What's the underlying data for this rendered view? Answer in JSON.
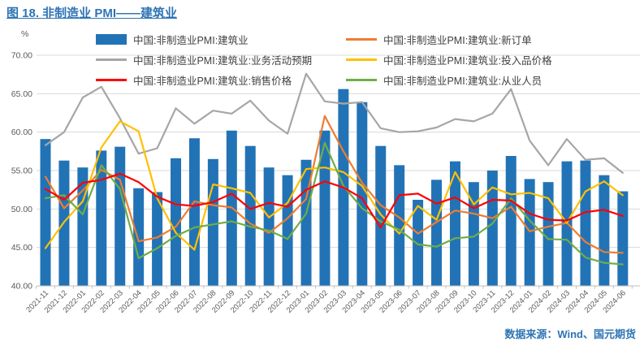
{
  "title": "图 18. 非制造业 PMI——建筑业",
  "source": "数据来源：Wind、国元期货",
  "y_axis": {
    "unit": "%",
    "ticks": [
      "70.00",
      "65.00",
      "60.00",
      "55.00",
      "50.00",
      "45.00",
      "40.00"
    ],
    "tick_values": [
      70,
      65,
      60,
      55,
      50,
      45,
      40
    ]
  },
  "styles": {
    "grid_color": "#D9D9D9",
    "axis_color": "#BFBFBF",
    "tick_label_color": "#595959",
    "background": "#FFFFFF"
  },
  "chart_data": {
    "type": "bar",
    "subtype": "bar+line combo",
    "title": "图 18. 非制造业 PMI——建筑业",
    "xlabel": "",
    "ylabel": "%",
    "ylim": [
      40,
      70
    ],
    "grid": true,
    "legend_position": "top",
    "categories": [
      "2021-11",
      "2021-12",
      "2022-01",
      "2022-02",
      "2022-03",
      "2022-04",
      "2022-05",
      "2022-06",
      "2022-07",
      "2022-08",
      "2022-09",
      "2022-10",
      "2022-11",
      "2022-12",
      "2023-01",
      "2023-02",
      "2023-03",
      "2023-04",
      "2023-05",
      "2023-06",
      "2023-07",
      "2023-08",
      "2023-09",
      "2023-10",
      "2023-11",
      "2023-12",
      "2024-01",
      "2024-02",
      "2024-03",
      "2024-04",
      "2024-05",
      "2024-06"
    ],
    "series": [
      {
        "name": "中国:非制造业PMI:建筑业",
        "type": "bar",
        "color": "#2273B6",
        "values": [
          59.1,
          56.3,
          55.4,
          57.6,
          58.1,
          52.7,
          52.2,
          56.6,
          59.2,
          56.5,
          60.2,
          58.2,
          55.4,
          54.4,
          56.4,
          60.2,
          65.6,
          63.9,
          58.2,
          55.7,
          51.2,
          53.8,
          56.2,
          53.5,
          55.0,
          56.9,
          53.9,
          53.5,
          56.2,
          56.3,
          54.4,
          52.3
        ]
      },
      {
        "name": "中国:非制造业PMI:建筑业:新订单",
        "type": "line",
        "color": "#ED7D31",
        "values": [
          54.2,
          50.1,
          52.4,
          55.1,
          53.8,
          45.8,
          46.3,
          47.7,
          51.0,
          50.5,
          50.2,
          48.1,
          46.9,
          48.8,
          51.3,
          62.1,
          57.5,
          53.4,
          50.5,
          48.9,
          46.8,
          48.3,
          49.8,
          49.4,
          48.8,
          50.3,
          47.1,
          47.7,
          48.2,
          45.7,
          44.4,
          44.3
        ]
      },
      {
        "name": "中国:非制造业PMI:建筑业:业务活动预期",
        "type": "line",
        "color": "#A6A6A6",
        "values": [
          58.3,
          60.0,
          64.5,
          65.9,
          61.8,
          57.2,
          57.9,
          63.1,
          61.1,
          62.8,
          62.4,
          64.1,
          61.5,
          59.8,
          67.6,
          64.0,
          63.7,
          63.9,
          60.5,
          60.0,
          60.1,
          60.6,
          61.7,
          61.4,
          62.4,
          65.6,
          58.9,
          55.7,
          59.1,
          56.4,
          56.6,
          54.7
        ]
      },
      {
        "name": "中国:非制造业PMI:建筑业:投入品价格",
        "type": "line",
        "color": "#FFC000",
        "values": [
          44.9,
          48.3,
          51.0,
          58.0,
          61.4,
          60.1,
          51.4,
          46.9,
          44.7,
          53.2,
          52.7,
          52.1,
          48.9,
          50.8,
          55.2,
          55.4,
          54.8,
          53.0,
          49.3,
          46.8,
          50.4,
          48.6,
          54.8,
          50.6,
          52.8,
          51.9,
          52.1,
          51.4,
          48.2,
          52.3,
          53.6,
          51.8
        ]
      },
      {
        "name": "中国:非制造业PMI:建筑业:销售价格",
        "type": "line",
        "color": "#FF0000",
        "values": [
          52.6,
          51.2,
          53.4,
          53.8,
          54.6,
          53.5,
          51.6,
          50.6,
          50.4,
          50.9,
          52.0,
          50.0,
          50.8,
          50.3,
          52.5,
          53.6,
          52.8,
          51.4,
          47.6,
          51.8,
          52.0,
          50.7,
          51.5,
          50.1,
          51.2,
          51.1,
          49.4,
          48.6,
          48.5,
          49.6,
          49.9,
          49.1
        ]
      },
      {
        "name": "中国:非制造业PMI:建筑业:从业人员",
        "type": "line",
        "color": "#70AD47",
        "values": [
          51.4,
          51.8,
          49.3,
          55.7,
          52.6,
          43.6,
          44.9,
          46.5,
          47.6,
          48.0,
          48.4,
          47.7,
          47.2,
          46.1,
          49.4,
          58.6,
          53.0,
          50.1,
          48.4,
          47.3,
          45.4,
          45.1,
          46.2,
          46.4,
          48.1,
          51.4,
          48.5,
          46.1,
          46.0,
          43.7,
          43.0,
          42.8
        ]
      }
    ]
  }
}
